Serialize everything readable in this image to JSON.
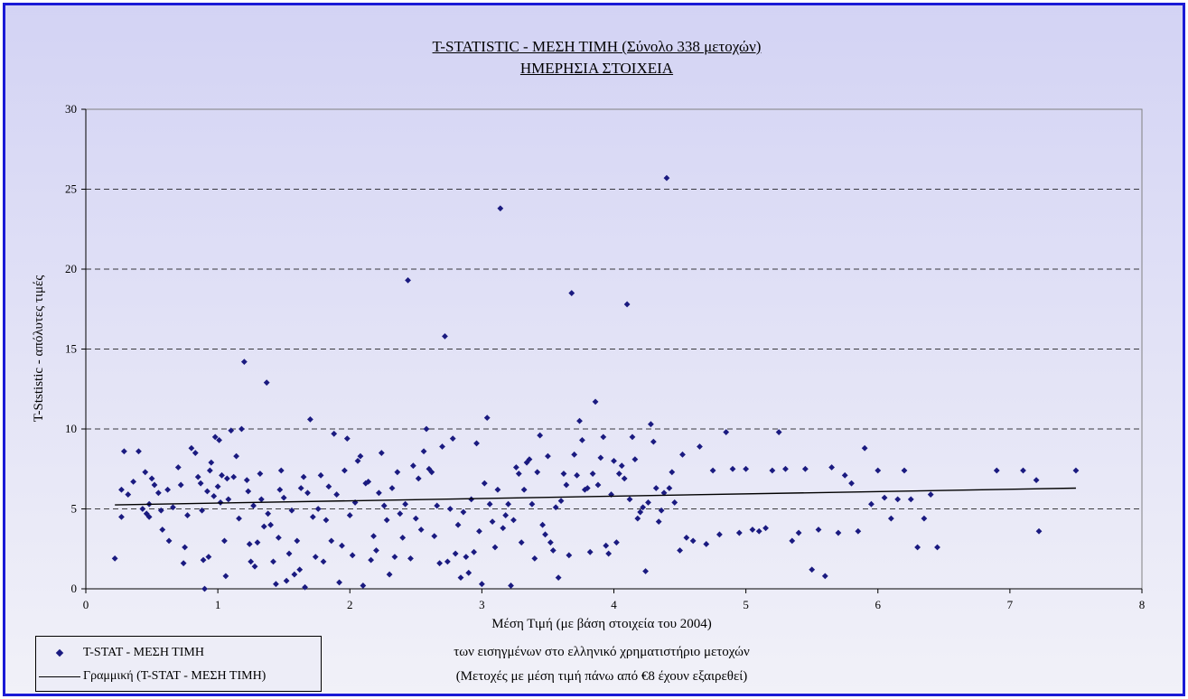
{
  "chart_data": {
    "type": "scatter",
    "title": "T-STATISTIC - ΜΕΣΗ ΤΙΜΗ (Σύνολο 338 μετοχών)",
    "subtitle": "ΗΜΕΡΗΣΙΑ ΣΤΟΙΧΕΙΑ",
    "ylabel": "T-Ststistic - απόλυτες τιμές",
    "xlabel_lines": [
      "Μέση Τιμή (με βάση στοιχεία του 2004)",
      "των εισηγμένων στο ελληνικό χρηματιστήριο μετοχών",
      "(Μετοχές με μέση τιμή πάνω από €8 έχουν εξαιρεθεί)"
    ],
    "xlim": [
      0,
      8
    ],
    "ylim": [
      0,
      30
    ],
    "xticks": [
      "0",
      "1",
      "2",
      "3",
      "4",
      "5",
      "6",
      "7",
      "8"
    ],
    "yticks": [
      "0",
      "5",
      "10",
      "15",
      "20",
      "25",
      "30"
    ],
    "grid": "horizontal dashed",
    "legend_position": "bottom-left",
    "colors": {
      "points": "#1a1a80",
      "trend": "#000000",
      "frame": "#1a1ad6"
    },
    "series": [
      {
        "name": "T-STAT - ΜΕΣΗ ΤΙΜΗ",
        "points": [
          [
            0.22,
            1.9
          ],
          [
            0.27,
            6.2
          ],
          [
            0.27,
            4.5
          ],
          [
            0.29,
            8.6
          ],
          [
            0.32,
            5.9
          ],
          [
            0.36,
            6.7
          ],
          [
            0.4,
            8.6
          ],
          [
            0.43,
            5.0
          ],
          [
            0.45,
            7.3
          ],
          [
            0.46,
            4.7
          ],
          [
            0.48,
            5.3
          ],
          [
            0.48,
            4.5
          ],
          [
            0.5,
            6.9
          ],
          [
            0.52,
            6.5
          ],
          [
            0.55,
            6.0
          ],
          [
            0.57,
            4.9
          ],
          [
            0.58,
            3.7
          ],
          [
            0.62,
            6.2
          ],
          [
            0.63,
            3.0
          ],
          [
            0.66,
            5.1
          ],
          [
            0.7,
            7.6
          ],
          [
            0.72,
            6.5
          ],
          [
            0.74,
            1.6
          ],
          [
            0.75,
            2.6
          ],
          [
            0.77,
            4.6
          ],
          [
            0.8,
            8.8
          ],
          [
            0.83,
            8.5
          ],
          [
            0.85,
            7.0
          ],
          [
            0.87,
            6.6
          ],
          [
            0.88,
            4.9
          ],
          [
            0.89,
            1.8
          ],
          [
            0.9,
            0.0
          ],
          [
            0.92,
            6.1
          ],
          [
            0.93,
            2.0
          ],
          [
            0.94,
            7.4
          ],
          [
            0.95,
            7.9
          ],
          [
            0.97,
            5.8
          ],
          [
            0.98,
            9.5
          ],
          [
            1.0,
            6.4
          ],
          [
            1.01,
            9.3
          ],
          [
            1.02,
            5.4
          ],
          [
            1.03,
            7.1
          ],
          [
            1.05,
            3.0
          ],
          [
            1.06,
            0.8
          ],
          [
            1.07,
            6.9
          ],
          [
            1.08,
            5.6
          ],
          [
            1.1,
            9.9
          ],
          [
            1.12,
            7.0
          ],
          [
            1.14,
            8.3
          ],
          [
            1.16,
            4.4
          ],
          [
            1.18,
            10.0
          ],
          [
            1.2,
            14.2
          ],
          [
            1.22,
            6.8
          ],
          [
            1.23,
            6.1
          ],
          [
            1.24,
            2.8
          ],
          [
            1.25,
            1.7
          ],
          [
            1.27,
            5.2
          ],
          [
            1.28,
            1.4
          ],
          [
            1.3,
            2.9
          ],
          [
            1.32,
            7.2
          ],
          [
            1.33,
            5.6
          ],
          [
            1.35,
            3.9
          ],
          [
            1.37,
            12.9
          ],
          [
            1.38,
            4.7
          ],
          [
            1.4,
            4.0
          ],
          [
            1.42,
            1.7
          ],
          [
            1.44,
            0.3
          ],
          [
            1.46,
            3.2
          ],
          [
            1.47,
            6.2
          ],
          [
            1.48,
            7.4
          ],
          [
            1.5,
            5.7
          ],
          [
            1.52,
            0.5
          ],
          [
            1.54,
            2.2
          ],
          [
            1.56,
            4.9
          ],
          [
            1.58,
            0.9
          ],
          [
            1.6,
            3.0
          ],
          [
            1.62,
            1.2
          ],
          [
            1.63,
            6.3
          ],
          [
            1.65,
            7.0
          ],
          [
            1.66,
            0.1
          ],
          [
            1.68,
            6.0
          ],
          [
            1.7,
            10.6
          ],
          [
            1.72,
            4.5
          ],
          [
            1.74,
            2.0
          ],
          [
            1.76,
            5.0
          ],
          [
            1.78,
            7.1
          ],
          [
            1.8,
            1.7
          ],
          [
            1.82,
            4.3
          ],
          [
            1.84,
            6.4
          ],
          [
            1.86,
            3.0
          ],
          [
            1.88,
            9.7
          ],
          [
            1.9,
            5.9
          ],
          [
            1.92,
            0.4
          ],
          [
            1.94,
            2.7
          ],
          [
            1.96,
            7.4
          ],
          [
            1.98,
            9.4
          ],
          [
            2.0,
            4.6
          ],
          [
            2.02,
            2.1
          ],
          [
            2.04,
            5.4
          ],
          [
            2.06,
            8.0
          ],
          [
            2.08,
            8.3
          ],
          [
            2.1,
            0.2
          ],
          [
            2.12,
            6.6
          ],
          [
            2.14,
            6.7
          ],
          [
            2.16,
            1.8
          ],
          [
            2.18,
            3.3
          ],
          [
            2.2,
            2.4
          ],
          [
            2.22,
            6.0
          ],
          [
            2.24,
            8.5
          ],
          [
            2.26,
            5.2
          ],
          [
            2.28,
            4.3
          ],
          [
            2.3,
            0.9
          ],
          [
            2.32,
            6.3
          ],
          [
            2.34,
            2.0
          ],
          [
            2.36,
            7.3
          ],
          [
            2.38,
            4.7
          ],
          [
            2.4,
            3.2
          ],
          [
            2.42,
            5.3
          ],
          [
            2.44,
            19.3
          ],
          [
            2.46,
            1.9
          ],
          [
            2.48,
            7.7
          ],
          [
            2.5,
            4.4
          ],
          [
            2.52,
            6.9
          ],
          [
            2.54,
            3.7
          ],
          [
            2.56,
            8.6
          ],
          [
            2.58,
            10.0
          ],
          [
            2.6,
            7.5
          ],
          [
            2.62,
            7.3
          ],
          [
            2.64,
            3.3
          ],
          [
            2.66,
            5.2
          ],
          [
            2.68,
            1.6
          ],
          [
            2.7,
            8.9
          ],
          [
            2.72,
            15.8
          ],
          [
            2.74,
            1.7
          ],
          [
            2.76,
            5.0
          ],
          [
            2.78,
            9.4
          ],
          [
            2.8,
            2.2
          ],
          [
            2.82,
            4.0
          ],
          [
            2.84,
            0.7
          ],
          [
            2.86,
            4.8
          ],
          [
            2.88,
            2.0
          ],
          [
            2.9,
            1.0
          ],
          [
            2.92,
            5.6
          ],
          [
            2.94,
            2.3
          ],
          [
            2.96,
            9.1
          ],
          [
            2.98,
            3.6
          ],
          [
            3.0,
            0.3
          ],
          [
            3.02,
            6.6
          ],
          [
            3.04,
            10.7
          ],
          [
            3.06,
            5.3
          ],
          [
            3.08,
            4.2
          ],
          [
            3.1,
            2.6
          ],
          [
            3.12,
            6.2
          ],
          [
            3.14,
            23.8
          ],
          [
            3.16,
            3.8
          ],
          [
            3.18,
            4.6
          ],
          [
            3.2,
            5.3
          ],
          [
            3.22,
            0.2
          ],
          [
            3.24,
            4.3
          ],
          [
            3.26,
            7.6
          ],
          [
            3.28,
            7.2
          ],
          [
            3.3,
            2.9
          ],
          [
            3.32,
            6.2
          ],
          [
            3.34,
            7.9
          ],
          [
            3.36,
            8.1
          ],
          [
            3.38,
            5.3
          ],
          [
            3.4,
            1.9
          ],
          [
            3.42,
            7.3
          ],
          [
            3.44,
            9.6
          ],
          [
            3.46,
            4.0
          ],
          [
            3.48,
            3.4
          ],
          [
            3.5,
            8.3
          ],
          [
            3.52,
            2.9
          ],
          [
            3.54,
            2.4
          ],
          [
            3.56,
            5.1
          ],
          [
            3.58,
            0.7
          ],
          [
            3.6,
            5.5
          ],
          [
            3.62,
            7.2
          ],
          [
            3.64,
            6.5
          ],
          [
            3.66,
            2.1
          ],
          [
            3.68,
            18.5
          ],
          [
            3.7,
            8.4
          ],
          [
            3.72,
            7.1
          ],
          [
            3.74,
            10.5
          ],
          [
            3.76,
            9.3
          ],
          [
            3.78,
            6.2
          ],
          [
            3.8,
            6.3
          ],
          [
            3.82,
            2.3
          ],
          [
            3.84,
            7.2
          ],
          [
            3.86,
            11.7
          ],
          [
            3.88,
            6.5
          ],
          [
            3.9,
            8.2
          ],
          [
            3.92,
            9.5
          ],
          [
            3.94,
            2.7
          ],
          [
            3.96,
            2.2
          ],
          [
            3.98,
            5.9
          ],
          [
            4.0,
            8.0
          ],
          [
            4.02,
            2.9
          ],
          [
            4.04,
            7.2
          ],
          [
            4.06,
            7.7
          ],
          [
            4.08,
            6.9
          ],
          [
            4.1,
            17.8
          ],
          [
            4.12,
            5.6
          ],
          [
            4.14,
            9.5
          ],
          [
            4.16,
            8.1
          ],
          [
            4.18,
            4.4
          ],
          [
            4.2,
            4.8
          ],
          [
            4.22,
            5.1
          ],
          [
            4.24,
            1.1
          ],
          [
            4.26,
            5.4
          ],
          [
            4.28,
            10.3
          ],
          [
            4.3,
            9.2
          ],
          [
            4.32,
            6.3
          ],
          [
            4.34,
            4.2
          ],
          [
            4.36,
            4.9
          ],
          [
            4.38,
            6.0
          ],
          [
            4.4,
            25.7
          ],
          [
            4.42,
            6.3
          ],
          [
            4.44,
            7.3
          ],
          [
            4.46,
            5.4
          ],
          [
            4.5,
            2.4
          ],
          [
            4.52,
            8.4
          ],
          [
            4.55,
            3.2
          ],
          [
            4.6,
            3.0
          ],
          [
            4.65,
            8.9
          ],
          [
            4.7,
            2.8
          ],
          [
            4.75,
            7.4
          ],
          [
            4.8,
            3.4
          ],
          [
            4.85,
            9.8
          ],
          [
            4.9,
            7.5
          ],
          [
            4.95,
            3.5
          ],
          [
            5.0,
            7.5
          ],
          [
            5.05,
            3.7
          ],
          [
            5.1,
            3.6
          ],
          [
            5.15,
            3.8
          ],
          [
            5.2,
            7.4
          ],
          [
            5.25,
            9.8
          ],
          [
            5.3,
            7.5
          ],
          [
            5.35,
            3.0
          ],
          [
            5.4,
            3.5
          ],
          [
            5.45,
            7.5
          ],
          [
            5.5,
            1.2
          ],
          [
            5.55,
            3.7
          ],
          [
            5.6,
            0.8
          ],
          [
            5.65,
            7.6
          ],
          [
            5.7,
            3.5
          ],
          [
            5.75,
            7.1
          ],
          [
            5.8,
            6.6
          ],
          [
            5.85,
            3.6
          ],
          [
            5.9,
            8.8
          ],
          [
            5.95,
            5.3
          ],
          [
            6.0,
            7.4
          ],
          [
            6.05,
            5.7
          ],
          [
            6.1,
            4.4
          ],
          [
            6.15,
            5.6
          ],
          [
            6.2,
            7.4
          ],
          [
            6.25,
            5.6
          ],
          [
            6.3,
            2.6
          ],
          [
            6.35,
            4.4
          ],
          [
            6.4,
            5.9
          ],
          [
            6.45,
            2.6
          ],
          [
            6.9,
            7.4
          ],
          [
            7.1,
            7.4
          ],
          [
            7.2,
            6.8
          ],
          [
            7.22,
            3.6
          ],
          [
            7.5,
            7.4
          ]
        ]
      },
      {
        "name": "Γραμμική (T-STAT - ΜΕΣΗ ΤΙΜΗ)",
        "type": "line",
        "points": [
          [
            0.22,
            5.25
          ],
          [
            7.5,
            6.3
          ]
        ]
      }
    ]
  }
}
